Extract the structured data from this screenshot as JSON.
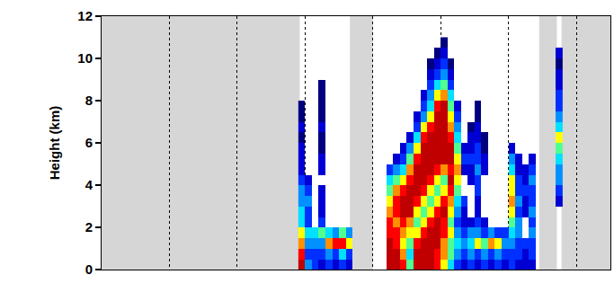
{
  "chart_data": {
    "type": "heatmap",
    "y_label": "Height (km)",
    "xlim": [
      0,
      7.5
    ],
    "xticks": [
      0,
      1,
      2,
      3,
      4,
      5,
      6,
      7
    ],
    "ylim": [
      0,
      12
    ],
    "yticks": [
      0,
      2,
      4,
      6,
      8,
      10,
      12
    ],
    "tick_labels": "y",
    "grid": "x",
    "zlim": [
      0,
      10
    ],
    "missing": [
      [
        0,
        2.92
      ],
      [
        3.66,
        4.0
      ],
      [
        6.45,
        6.71
      ],
      [
        6.78,
        7.5
      ]
    ],
    "x": [
      2.95,
      3.05,
      3.15,
      3.25,
      3.35,
      3.45,
      3.55,
      3.65,
      3.75,
      3.85,
      3.95,
      4.05,
      4.15,
      4.25,
      4.35,
      4.45,
      4.55,
      4.65,
      4.75,
      4.85,
      4.95,
      5.05,
      5.15,
      5.25,
      5.35,
      5.45,
      5.55,
      5.65,
      5.75,
      5.85,
      5.95,
      6.05,
      6.15,
      6.25,
      6.35,
      6.45,
      6.55,
      6.65,
      6.75
    ],
    "y": [
      0.25,
      0.75,
      1.25,
      1.75,
      2.25,
      2.75,
      3.25,
      3.75,
      4.25,
      4.75,
      5.25,
      5.75,
      6.25,
      6.75,
      7.25,
      7.75,
      8.25,
      8.75,
      9.25,
      9.75,
      10.25,
      10.75
    ],
    "cells": [
      [
        9,
        8,
        7,
        6,
        4,
        4,
        3,
        3,
        2,
        1,
        1,
        1,
        0,
        1,
        0,
        0,
        null,
        null,
        null,
        null,
        null,
        null
      ],
      [
        3,
        2,
        3,
        4,
        2,
        2,
        3,
        2,
        1,
        null,
        null,
        null,
        null,
        null,
        null,
        null,
        null,
        null,
        null,
        null,
        null,
        null
      ],
      [
        2,
        2,
        3,
        4,
        null,
        null,
        null,
        null,
        null,
        null,
        null,
        null,
        null,
        null,
        null,
        null,
        null,
        null,
        null,
        null,
        null,
        null
      ],
      [
        1,
        2,
        3,
        5,
        2,
        1,
        1,
        1,
        null,
        1,
        1,
        0,
        0,
        1,
        0,
        0,
        0,
        0,
        null,
        null,
        null,
        null
      ],
      [
        2,
        3,
        7,
        4,
        null,
        null,
        null,
        null,
        null,
        null,
        null,
        null,
        null,
        null,
        null,
        null,
        null,
        null,
        null,
        null,
        null,
        null
      ],
      [
        1,
        2,
        8,
        3,
        null,
        null,
        null,
        null,
        null,
        null,
        null,
        null,
        null,
        null,
        null,
        null,
        null,
        null,
        null,
        null,
        null,
        null
      ],
      [
        2,
        4,
        8,
        5,
        null,
        null,
        null,
        null,
        null,
        null,
        null,
        null,
        null,
        null,
        null,
        null,
        null,
        null,
        null,
        null,
        null,
        null
      ],
      [
        1,
        2,
        6,
        3,
        null,
        null,
        null,
        null,
        null,
        null,
        null,
        null,
        null,
        null,
        null,
        null,
        null,
        null,
        null,
        null,
        null,
        null
      ],
      [
        null,
        null,
        null,
        null,
        null,
        null,
        null,
        null,
        null,
        null,
        null,
        null,
        null,
        null,
        null,
        null,
        null,
        null,
        null,
        null,
        null,
        null
      ],
      [
        null,
        null,
        null,
        null,
        null,
        null,
        null,
        null,
        null,
        null,
        null,
        null,
        null,
        null,
        null,
        null,
        null,
        null,
        null,
        null,
        null,
        null
      ],
      [
        null,
        null,
        null,
        null,
        null,
        null,
        null,
        null,
        null,
        null,
        null,
        null,
        null,
        null,
        null,
        null,
        null,
        null,
        null,
        null,
        null,
        null
      ],
      [
        null,
        null,
        null,
        null,
        null,
        null,
        null,
        null,
        null,
        null,
        null,
        null,
        null,
        null,
        null,
        null,
        null,
        null,
        null,
        null,
        null,
        null
      ],
      [
        null,
        null,
        null,
        null,
        null,
        null,
        null,
        null,
        null,
        null,
        null,
        null,
        null,
        null,
        null,
        null,
        null,
        null,
        null,
        null,
        null,
        null
      ],
      [
        9,
        9,
        9,
        8,
        8,
        7,
        6,
        5,
        4,
        2,
        null,
        null,
        null,
        null,
        null,
        null,
        null,
        null,
        null,
        null,
        null,
        null
      ],
      [
        9,
        9,
        8,
        8,
        7,
        8,
        8,
        7,
        5,
        3,
        1,
        null,
        null,
        null,
        null,
        null,
        null,
        null,
        null,
        null,
        null,
        null
      ],
      [
        8,
        7,
        6,
        7,
        8,
        9,
        9,
        8,
        6,
        4,
        2,
        1,
        null,
        null,
        null,
        null,
        null,
        null,
        null,
        null,
        null,
        null
      ],
      [
        5,
        4,
        5,
        6,
        7,
        9,
        9,
        9,
        8,
        7,
        5,
        3,
        1,
        null,
        null,
        null,
        null,
        null,
        null,
        null,
        null,
        null
      ],
      [
        9,
        9,
        8,
        6,
        5,
        6,
        8,
        9,
        9,
        9,
        8,
        6,
        4,
        2,
        1,
        null,
        null,
        null,
        null,
        null,
        null,
        null
      ],
      [
        9,
        9,
        9,
        8,
        6,
        5,
        6,
        8,
        9,
        9,
        9,
        9,
        8,
        6,
        3,
        2,
        1,
        null,
        null,
        null,
        null,
        null
      ],
      [
        9,
        9,
        9,
        9,
        8,
        6,
        5,
        6,
        8,
        9,
        9,
        9,
        9,
        8,
        6,
        4,
        3,
        2,
        1,
        0,
        null,
        null
      ],
      [
        8,
        8,
        9,
        9,
        9,
        8,
        6,
        5,
        6,
        8,
        9,
        9,
        9,
        9,
        9,
        8,
        6,
        4,
        2,
        1,
        0,
        null
      ],
      [
        6,
        7,
        7,
        8,
        8,
        9,
        8,
        6,
        5,
        7,
        9,
        9,
        9,
        9,
        9,
        9,
        7,
        5,
        3,
        2,
        1,
        0
      ],
      [
        4,
        5,
        5,
        6,
        5,
        6,
        7,
        8,
        9,
        8,
        9,
        9,
        8,
        7,
        6,
        5,
        4,
        2,
        1,
        0,
        null,
        null
      ],
      [
        2,
        3,
        4,
        3,
        2,
        3,
        4,
        5,
        6,
        7,
        6,
        5,
        4,
        3,
        2,
        1,
        null,
        null,
        null,
        null,
        null,
        null
      ],
      [
        1,
        2,
        3,
        2,
        1,
        1,
        2,
        null,
        null,
        1,
        2,
        1,
        null,
        null,
        null,
        null,
        null,
        null,
        null,
        null,
        null,
        null
      ],
      [
        2,
        3,
        4,
        3,
        1,
        null,
        null,
        null,
        1,
        1,
        2,
        1,
        1,
        0,
        null,
        null,
        null,
        null,
        null,
        null,
        null,
        null
      ],
      [
        1,
        2,
        6,
        3,
        2,
        1,
        1,
        2,
        2,
        3,
        2,
        2,
        1,
        1,
        0,
        0,
        null,
        null,
        null,
        null,
        null,
        null
      ],
      [
        2,
        3,
        5,
        2,
        1,
        null,
        null,
        null,
        null,
        1,
        1,
        0,
        0,
        null,
        null,
        null,
        null,
        null,
        null,
        null,
        null,
        null
      ],
      [
        1,
        2,
        7,
        3,
        null,
        null,
        null,
        null,
        null,
        null,
        null,
        null,
        null,
        null,
        null,
        null,
        null,
        null,
        null,
        null,
        null,
        null
      ],
      [
        2,
        3,
        6,
        2,
        null,
        null,
        null,
        null,
        null,
        null,
        null,
        null,
        null,
        null,
        null,
        null,
        null,
        null,
        null,
        null,
        null,
        null
      ],
      [
        1,
        2,
        3,
        2,
        null,
        null,
        null,
        null,
        null,
        null,
        null,
        null,
        null,
        null,
        null,
        null,
        null,
        null,
        null,
        null,
        null,
        null
      ],
      [
        2,
        2,
        3,
        4,
        5,
        6,
        7,
        6,
        6,
        4,
        3,
        1,
        null,
        null,
        null,
        null,
        null,
        null,
        null,
        null,
        null,
        null
      ],
      [
        1,
        2,
        2,
        3,
        3,
        2,
        3,
        2,
        2,
        1,
        1,
        null,
        null,
        null,
        null,
        null,
        null,
        null,
        null,
        null,
        null,
        null
      ],
      [
        1,
        1,
        2,
        null,
        null,
        1,
        1,
        2,
        1,
        1,
        null,
        null,
        null,
        null,
        null,
        null,
        null,
        null,
        null,
        null,
        null,
        null
      ],
      [
        1,
        2,
        2,
        3,
        2,
        3,
        2,
        2,
        3,
        2,
        1,
        null,
        null,
        null,
        null,
        null,
        null,
        null,
        null,
        null,
        null,
        null
      ],
      [
        null,
        null,
        null,
        null,
        null,
        null,
        null,
        null,
        null,
        null,
        null,
        null,
        null,
        null,
        null,
        null,
        null,
        null,
        null,
        null,
        null,
        null
      ],
      [
        null,
        null,
        null,
        null,
        null,
        null,
        null,
        null,
        null,
        null,
        null,
        null,
        null,
        null,
        null,
        null,
        null,
        null,
        null,
        null,
        null,
        null
      ],
      [
        null,
        null,
        null,
        null,
        null,
        null,
        null,
        null,
        null,
        null,
        null,
        null,
        null,
        null,
        null,
        null,
        null,
        null,
        null,
        null,
        null,
        null
      ],
      [
        null,
        null,
        null,
        null,
        null,
        null,
        1,
        2,
        3,
        3,
        4,
        5,
        6,
        4,
        3,
        2,
        2,
        1,
        1,
        0,
        1,
        null
      ]
    ]
  }
}
